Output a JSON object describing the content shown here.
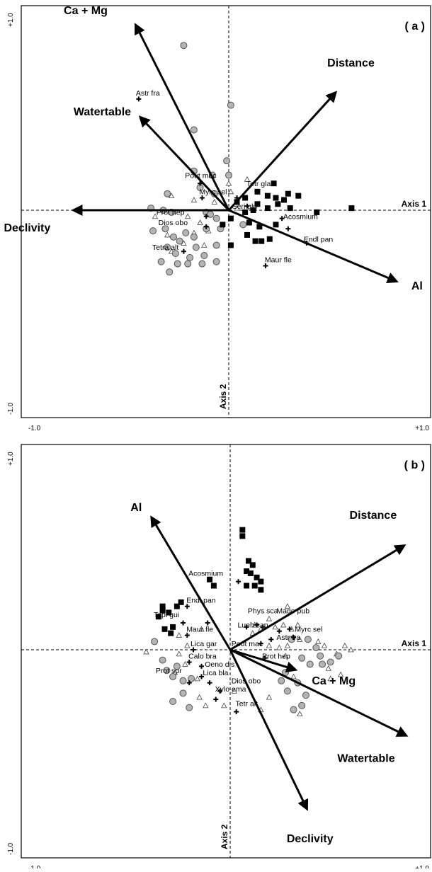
{
  "chart_data": [
    {
      "type": "scatter",
      "panel_label": "( a )",
      "xlim": [
        -1.0,
        1.0
      ],
      "ylim": [
        -1.0,
        1.0
      ],
      "tick_labels": {
        "x_min": "-1.0",
        "x_max": "+1.0",
        "y_min": "-1.0",
        "y_max": "+1.0"
      },
      "axis1_label": "Axis 1",
      "axis2_label": "Axis 2",
      "vectors": [
        {
          "name": "Ca + Mg",
          "x": -0.46,
          "y": 0.91
        },
        {
          "name": "Distance",
          "x": 0.53,
          "y": 0.58
        },
        {
          "name": "Watertable",
          "x": -0.44,
          "y": 0.46
        },
        {
          "name": "Declivity",
          "x": -0.77,
          "y": 0.0
        },
        {
          "name": "Al",
          "x": 0.83,
          "y": -0.35
        }
      ],
      "species_labels": [
        {
          "name": "Astr fra",
          "x": -0.44,
          "y": 0.54
        },
        {
          "name": "Pout mac",
          "x": -0.2,
          "y": 0.14
        },
        {
          "name": "Tetr gla",
          "x": 0.1,
          "y": 0.1
        },
        {
          "name": "Myrc sel",
          "x": -0.13,
          "y": 0.06
        },
        {
          "name": "Prot hep",
          "x": -0.34,
          "y": -0.04
        },
        {
          "name": "Seri glu",
          "x": 0.03,
          "y": -0.01
        },
        {
          "name": "Dios obo",
          "x": -0.33,
          "y": -0.09
        },
        {
          "name": "Acosmium",
          "x": 0.28,
          "y": -0.06
        },
        {
          "name": "Tetra alt",
          "x": -0.36,
          "y": -0.21
        },
        {
          "name": "Endl pan",
          "x": 0.38,
          "y": -0.17
        },
        {
          "name": "Maur fle",
          "x": 0.19,
          "y": -0.27
        }
      ],
      "group_circle": [
        [
          -0.22,
          0.8
        ],
        [
          0.01,
          0.51
        ],
        [
          -0.17,
          0.39
        ],
        [
          -0.01,
          0.24
        ],
        [
          -0.08,
          0.17
        ],
        [
          -0.17,
          0.19
        ],
        [
          0.0,
          0.17
        ],
        [
          -0.14,
          0.11
        ],
        [
          -0.07,
          0.08
        ],
        [
          -0.3,
          0.08
        ],
        [
          -0.32,
          0.0
        ],
        [
          -0.28,
          -0.01
        ],
        [
          -0.11,
          -0.01
        ],
        [
          -0.09,
          -0.02
        ],
        [
          -0.06,
          -0.04
        ],
        [
          0.07,
          -0.07
        ],
        [
          -0.37,
          -0.1
        ],
        [
          -0.31,
          -0.09
        ],
        [
          -0.21,
          -0.11
        ],
        [
          -0.11,
          -0.09
        ],
        [
          -0.04,
          -0.09
        ],
        [
          -0.27,
          -0.13
        ],
        [
          -0.24,
          -0.15
        ],
        [
          -0.17,
          -0.13
        ],
        [
          -0.3,
          -0.18
        ],
        [
          -0.16,
          -0.18
        ],
        [
          -0.06,
          -0.17
        ],
        [
          -0.26,
          -0.21
        ],
        [
          -0.19,
          -0.23
        ],
        [
          -0.12,
          -0.22
        ],
        [
          -0.25,
          -0.26
        ],
        [
          -0.2,
          -0.26
        ],
        [
          -0.13,
          -0.26
        ],
        [
          -0.06,
          -0.25
        ],
        [
          -0.29,
          -0.3
        ],
        [
          -0.33,
          -0.25
        ],
        [
          -0.38,
          0.01
        ]
      ],
      "group_square": [
        [
          0.22,
          0.13
        ],
        [
          0.14,
          0.09
        ],
        [
          0.19,
          0.07
        ],
        [
          0.29,
          0.08
        ],
        [
          0.34,
          0.07
        ],
        [
          0.27,
          0.05
        ],
        [
          0.23,
          0.06
        ],
        [
          0.08,
          0.06
        ],
        [
          0.14,
          0.03
        ],
        [
          0.24,
          0.03
        ],
        [
          0.04,
          0.04
        ],
        [
          0.3,
          0.01
        ],
        [
          0.12,
          0.0
        ],
        [
          0.19,
          0.01
        ],
        [
          0.6,
          0.01
        ],
        [
          0.08,
          -0.01
        ],
        [
          0.43,
          -0.01
        ],
        [
          0.01,
          -0.04
        ],
        [
          -0.03,
          -0.07
        ],
        [
          0.1,
          -0.06
        ],
        [
          0.15,
          -0.08
        ],
        [
          0.23,
          -0.07
        ],
        [
          0.09,
          -0.12
        ],
        [
          0.13,
          -0.15
        ],
        [
          0.16,
          -0.15
        ],
        [
          0.2,
          -0.14
        ],
        [
          0.01,
          -0.17
        ]
      ],
      "group_triangle": [
        [
          -0.28,
          0.07
        ],
        [
          -0.17,
          0.05
        ],
        [
          -0.07,
          0.04
        ],
        [
          0.01,
          0.09
        ],
        [
          0.09,
          0.15
        ],
        [
          0.0,
          0.13
        ],
        [
          -0.2,
          -0.03
        ],
        [
          -0.36,
          -0.03
        ],
        [
          -0.14,
          -0.06
        ],
        [
          -0.1,
          -0.1
        ],
        [
          -0.3,
          -0.12
        ],
        [
          -0.17,
          -0.11
        ],
        [
          -0.28,
          -0.2
        ],
        [
          -0.12,
          -0.17
        ],
        [
          -0.22,
          -0.16
        ],
        [
          0.04,
          0.01
        ]
      ],
      "group_plus": [
        [
          -0.44,
          0.54
        ],
        [
          -0.14,
          0.13
        ],
        [
          -0.13,
          0.06
        ],
        [
          -0.11,
          -0.03
        ],
        [
          -0.11,
          -0.08
        ],
        [
          -0.22,
          -0.2
        ],
        [
          0.09,
          0.02
        ],
        [
          0.04,
          0.06
        ],
        [
          0.26,
          -0.04
        ],
        [
          0.38,
          -0.16
        ],
        [
          0.29,
          -0.09
        ],
        [
          0.18,
          -0.27
        ]
      ]
    },
    {
      "type": "scatter",
      "panel_label": "( b )",
      "xlim": [
        -1.0,
        1.0
      ],
      "ylim": [
        -1.0,
        1.0
      ],
      "tick_labels": {
        "x_min": "-1.0",
        "x_max": "+1.0",
        "y_min": "-1.0",
        "y_max": "+1.0"
      },
      "axis1_label": "Axis 1",
      "axis2_label": "Axis 2",
      "vectors": [
        {
          "name": "Al",
          "x": -0.39,
          "y": 0.65
        },
        {
          "name": "Distance",
          "x": 0.86,
          "y": 0.51
        },
        {
          "name": "Ca + Mg",
          "x": 0.33,
          "y": -0.1
        },
        {
          "name": "Watertable",
          "x": 0.87,
          "y": -0.42
        },
        {
          "name": "Declivity",
          "x": 0.38,
          "y": -0.78
        }
      ],
      "species_labels": [
        {
          "name": "Acosmium",
          "x": -0.19,
          "y": 0.34
        },
        {
          "name": "Endl pan",
          "x": -0.2,
          "y": 0.21
        },
        {
          "name": "Tapi gui",
          "x": -0.36,
          "y": 0.14
        },
        {
          "name": "Phys sca",
          "x": 0.1,
          "y": 0.16
        },
        {
          "name": "Mago pub",
          "x": 0.24,
          "y": 0.16
        },
        {
          "name": "Lueh can",
          "x": 0.05,
          "y": 0.09
        },
        {
          "name": "Maur fle",
          "x": -0.2,
          "y": 0.07
        },
        {
          "name": "Myrc sel",
          "x": 0.33,
          "y": 0.07
        },
        {
          "name": "Astr fra",
          "x": 0.24,
          "y": 0.03
        },
        {
          "name": "Lica gar",
          "x": -0.18,
          "y": 0.0
        },
        {
          "name": "Pout mac",
          "x": 0.02,
          "y": 0.0
        },
        {
          "name": "Prot hep",
          "x": 0.17,
          "y": -0.06
        },
        {
          "name": "Calo bra",
          "x": -0.19,
          "y": -0.06
        },
        {
          "name": "Oeno dis",
          "x": -0.11,
          "y": -0.1
        },
        {
          "name": "Prot spr",
          "x": -0.35,
          "y": -0.13
        },
        {
          "name": "Lica bla",
          "x": -0.12,
          "y": -0.14
        },
        {
          "name": "Dios obo",
          "x": 0.02,
          "y": -0.18
        },
        {
          "name": "Xylo ema",
          "x": -0.06,
          "y": -0.22
        },
        {
          "name": "Tetr alt",
          "x": 0.04,
          "y": -0.29
        }
      ],
      "group_circle": [
        [
          -0.37,
          0.04
        ],
        [
          -0.33,
          -0.05
        ],
        [
          -0.31,
          -0.1
        ],
        [
          -0.26,
          -0.08
        ],
        [
          -0.28,
          -0.13
        ],
        [
          -0.23,
          -0.15
        ],
        [
          -0.19,
          -0.14
        ],
        [
          -0.23,
          -0.21
        ],
        [
          -0.28,
          -0.25
        ],
        [
          -0.2,
          -0.28
        ],
        [
          0.3,
          0.05
        ],
        [
          0.38,
          0.05
        ],
        [
          0.42,
          0.01
        ],
        [
          0.44,
          -0.03
        ],
        [
          0.35,
          -0.04
        ],
        [
          0.39,
          -0.07
        ],
        [
          0.45,
          -0.07
        ],
        [
          0.49,
          -0.06
        ],
        [
          0.53,
          -0.03
        ],
        [
          0.27,
          -0.11
        ],
        [
          0.33,
          -0.16
        ],
        [
          0.25,
          -0.15
        ],
        [
          0.28,
          -0.2
        ],
        [
          0.37,
          -0.22
        ],
        [
          0.35,
          -0.27
        ],
        [
          0.31,
          -0.29
        ]
      ],
      "group_square": [
        [
          0.06,
          0.58
        ],
        [
          0.06,
          0.55
        ],
        [
          0.09,
          0.43
        ],
        [
          0.11,
          0.41
        ],
        [
          0.1,
          0.37
        ],
        [
          0.13,
          0.35
        ],
        [
          0.15,
          0.33
        ],
        [
          0.08,
          0.31
        ],
        [
          0.12,
          0.31
        ],
        [
          0.15,
          0.29
        ],
        [
          0.08,
          0.38
        ],
        [
          -0.1,
          0.34
        ],
        [
          -0.08,
          0.31
        ],
        [
          -0.33,
          0.21
        ],
        [
          -0.33,
          0.19
        ],
        [
          -0.3,
          0.18
        ],
        [
          -0.26,
          0.21
        ],
        [
          -0.24,
          0.23
        ],
        [
          -0.35,
          0.16
        ],
        [
          -0.28,
          0.11
        ],
        [
          -0.32,
          0.1
        ],
        [
          -0.29,
          0.08
        ]
      ],
      "group_triangle": [
        [
          0.28,
          0.21
        ],
        [
          0.19,
          0.15
        ],
        [
          0.22,
          0.11
        ],
        [
          0.26,
          0.12
        ],
        [
          0.3,
          0.1
        ],
        [
          0.33,
          0.12
        ],
        [
          0.15,
          0.1
        ],
        [
          0.12,
          0.12
        ],
        [
          0.11,
          0.08
        ],
        [
          0.19,
          0.02
        ],
        [
          0.24,
          0.01
        ],
        [
          0.28,
          0.02
        ],
        [
          0.34,
          0.05
        ],
        [
          0.43,
          0.04
        ],
        [
          0.46,
          0.02
        ],
        [
          0.52,
          -0.02
        ],
        [
          0.56,
          0.02
        ],
        [
          0.59,
          0.0
        ],
        [
          0.48,
          -0.09
        ],
        [
          0.49,
          -0.14
        ],
        [
          0.54,
          -0.12
        ],
        [
          0.27,
          -0.03
        ],
        [
          0.31,
          -0.13
        ],
        [
          0.34,
          -0.31
        ],
        [
          -0.25,
          0.07
        ],
        [
          -0.21,
          0.02
        ],
        [
          -0.14,
          0.1
        ],
        [
          -0.25,
          -0.02
        ],
        [
          -0.41,
          -0.01
        ],
        [
          -0.22,
          -0.07
        ],
        [
          -0.27,
          -0.11
        ],
        [
          -0.16,
          -0.14
        ],
        [
          -0.15,
          -0.23
        ],
        [
          -0.12,
          -0.27
        ],
        [
          -0.03,
          -0.27
        ],
        [
          0.15,
          -0.29
        ],
        [
          0.02,
          -0.2
        ],
        [
          0.19,
          -0.23
        ]
      ],
      "group_plus": [
        [
          0.04,
          0.33
        ],
        [
          -0.21,
          0.21
        ],
        [
          -0.23,
          0.13
        ],
        [
          -0.21,
          0.07
        ],
        [
          -0.11,
          0.13
        ],
        [
          -0.18,
          0.0
        ],
        [
          -0.2,
          -0.06
        ],
        [
          -0.14,
          -0.08
        ],
        [
          -0.14,
          -0.13
        ],
        [
          -0.2,
          -0.16
        ],
        [
          -0.1,
          -0.16
        ],
        [
          -0.05,
          -0.2
        ],
        [
          -0.07,
          -0.24
        ],
        [
          0.03,
          -0.3
        ],
        [
          0.08,
          0.11
        ],
        [
          0.16,
          0.11
        ],
        [
          0.13,
          0.12
        ],
        [
          0.29,
          0.1
        ],
        [
          0.24,
          0.09
        ],
        [
          0.31,
          0.06
        ],
        [
          0.2,
          0.05
        ],
        [
          0.15,
          0.03
        ],
        [
          0.17,
          -0.04
        ]
      ]
    }
  ]
}
